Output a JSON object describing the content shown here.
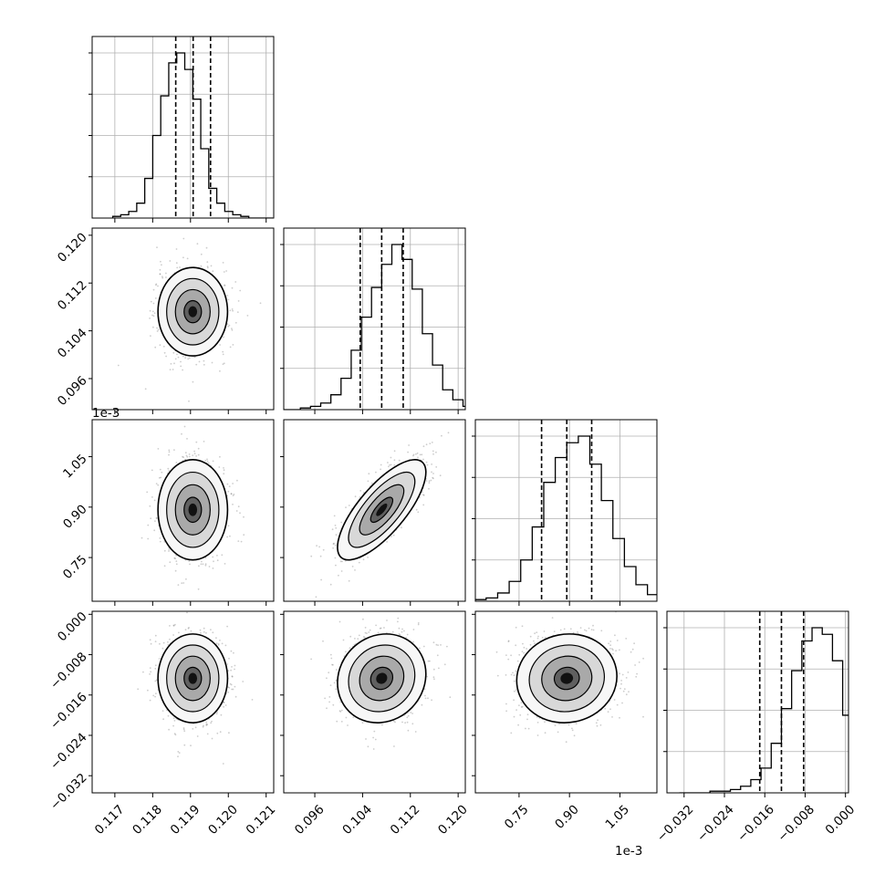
{
  "figure": {
    "type": "corner-plot",
    "offset_label": "1e-3"
  },
  "chart_data": {
    "type": "corner",
    "parameters": [
      {
        "range": [
          0.1164,
          0.1212
        ],
        "ticks": [
          0.117,
          0.118,
          0.119,
          0.12,
          0.121
        ],
        "tick_labels": [
          "0.117",
          "0.118",
          "0.119",
          "0.120",
          "0.121"
        ],
        "offset_label": "",
        "mean": 0.11906,
        "sd": 0.00046,
        "quantiles": [
          0.11861,
          0.11907,
          0.11953
        ]
      },
      {
        "range": [
          0.0908,
          0.1212
        ],
        "ticks": [
          0.096,
          0.104,
          0.112,
          0.12
        ],
        "tick_labels": [
          "0.096",
          "0.104",
          "0.112",
          "0.120"
        ],
        "offset_label": "",
        "mean": 0.1072,
        "sd": 0.0037,
        "quantiles": [
          0.1036,
          0.1072,
          0.1108
        ]
      },
      {
        "range": [
          0.00062,
          0.00116
        ],
        "ticks": [
          0.00075,
          0.0009,
          0.00105
        ],
        "tick_labels": [
          "0.75",
          "0.90",
          "1.05"
        ],
        "offset_label": "1e-3",
        "mean": 0.000892,
        "sd": 7.45e-05,
        "quantiles": [
          0.000817,
          0.000892,
          0.000966
        ]
      },
      {
        "range": [
          -0.0354,
          0.0006
        ],
        "ticks": [
          -0.032,
          -0.024,
          -0.016,
          -0.008,
          0.0
        ],
        "tick_labels": [
          "−0.032",
          "−0.024",
          "−0.016",
          "−0.008",
          "0.000"
        ],
        "offset_label": "",
        "mean": -0.0127,
        "sd": 0.0044,
        "quantiles": [
          -0.017,
          -0.0127,
          -0.0083
        ]
      }
    ],
    "correlations": [
      [
        1,
        0,
        0,
        0
      ],
      [
        0,
        1,
        0.75,
        0.1
      ],
      [
        0,
        0.75,
        1,
        0.05
      ],
      [
        0,
        0.1,
        0.05,
        1
      ]
    ],
    "histogram": {
      "bins": 20,
      "heights": [
        [
          1,
          2,
          4,
          9,
          24,
          50,
          74,
          94,
          100,
          90,
          72,
          42,
          18,
          9,
          4,
          2,
          1,
          0,
          0,
          0
        ],
        [
          0,
          0,
          1,
          2,
          4,
          9,
          19,
          36,
          56,
          74,
          88,
          100,
          91,
          73,
          46,
          27,
          12,
          6,
          2,
          0
        ],
        [
          0,
          0,
          1,
          2,
          5,
          12,
          25,
          45,
          72,
          87,
          96,
          100,
          83,
          61,
          38,
          21,
          10,
          4,
          1,
          0
        ],
        [
          0,
          0,
          0,
          1,
          1,
          2,
          4,
          8,
          15,
          30,
          51,
          74,
          92,
          100,
          96,
          80,
          47,
          17,
          4,
          1
        ]
      ]
    },
    "quantile_line_style": "dashed",
    "grid": true,
    "contour_levels": [
      0.5,
      1.0,
      1.5,
      2.0
    ],
    "colors": {
      "line": "#000000",
      "grid": "#b0b0b0",
      "points": "#4d4d4d"
    }
  }
}
